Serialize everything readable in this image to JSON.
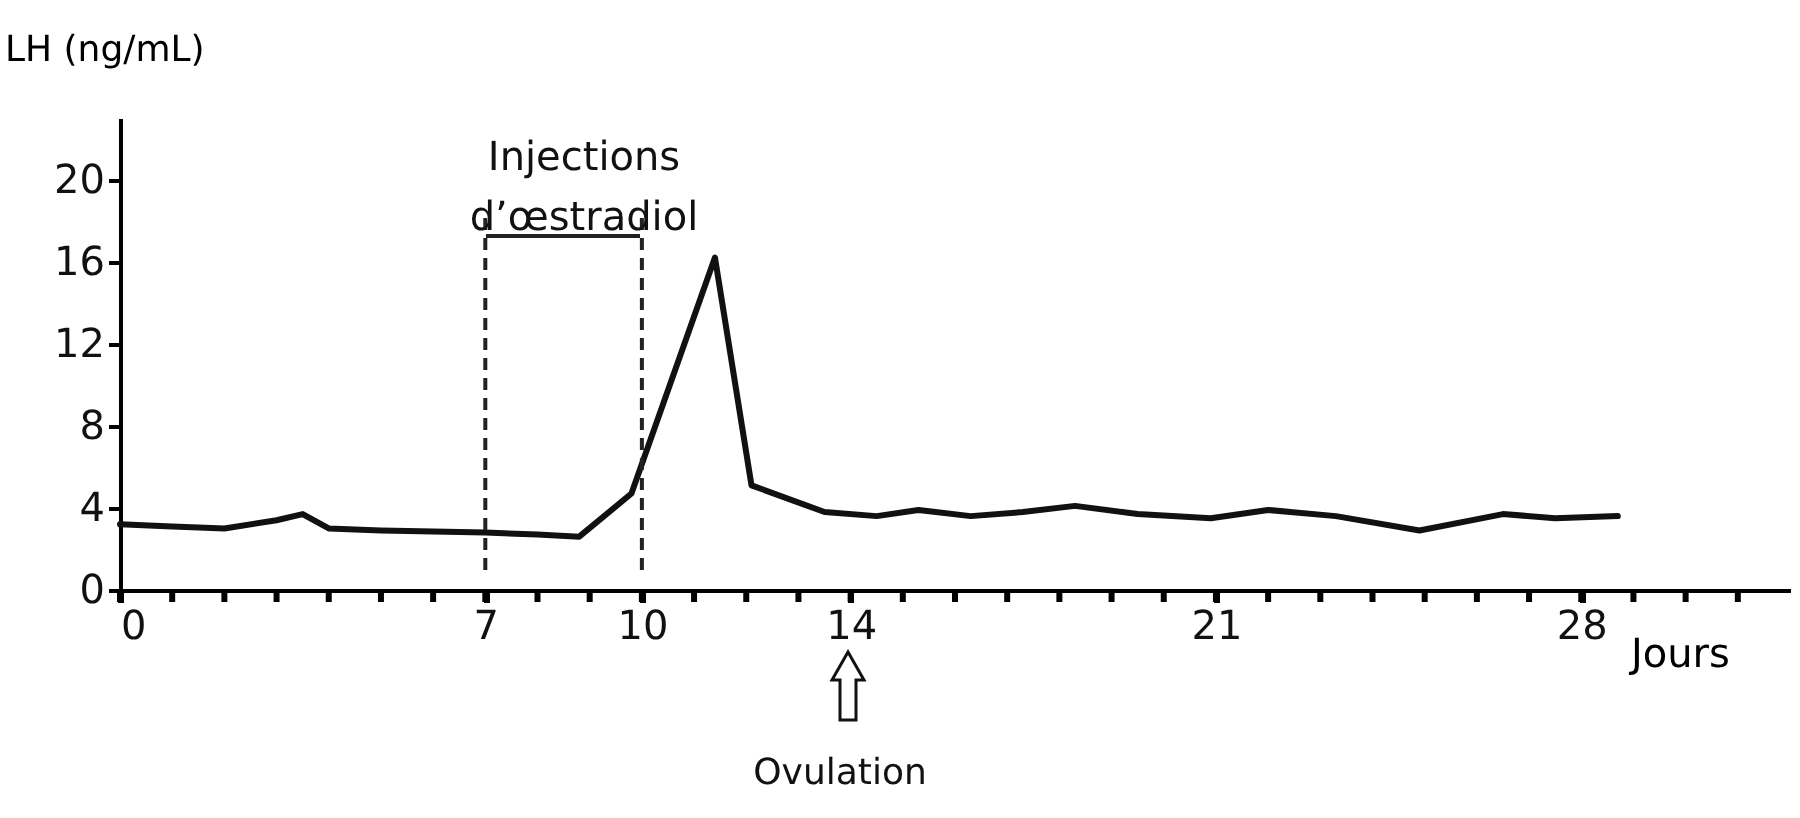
{
  "chart_data": {
    "type": "line",
    "xlabel": "Jours",
    "ylabel": "LH (ng/mL)",
    "x": [
      0,
      1,
      2,
      3,
      3.5,
      4,
      5,
      7,
      8,
      8.8,
      9.8,
      11.4,
      12.1,
      13.5,
      14.5,
      15.3,
      16.3,
      17.3,
      18.3,
      19.5,
      20.9,
      22,
      23.3,
      24.9,
      26.5,
      27.5,
      28.7
    ],
    "series": [
      {
        "color": "#111111",
        "values": [
          3.2,
          3.1,
          3.0,
          3.4,
          3.7,
          3.0,
          2.9,
          2.8,
          2.7,
          2.6,
          4.7,
          16.2,
          5.1,
          3.8,
          3.6,
          3.9,
          3.6,
          3.8,
          4.1,
          3.7,
          3.5,
          3.9,
          3.6,
          2.9,
          3.7,
          3.5,
          3.6
        ]
      }
    ],
    "xlim": [
      0,
      32
    ],
    "ylim": [
      0,
      23
    ],
    "xticks": [
      0,
      {
        "value": 1,
        "label": null
      },
      {
        "value": 2,
        "label": null
      },
      {
        "value": 3,
        "label": null
      },
      {
        "value": 4,
        "label": null
      },
      {
        "value": 5,
        "label": null
      },
      {
        "value": 6,
        "label": null
      },
      7,
      {
        "value": 8,
        "label": null
      },
      {
        "value": 9,
        "label": null
      },
      10,
      {
        "value": 11,
        "label": null
      },
      {
        "value": 12,
        "label": null
      },
      {
        "value": 13,
        "label": null
      },
      14,
      {
        "value": 15,
        "label": null
      },
      {
        "value": 16,
        "label": null
      },
      {
        "value": 17,
        "label": null
      },
      {
        "value": 18,
        "label": null
      },
      {
        "value": 19,
        "label": null
      },
      {
        "value": 20,
        "label": null
      },
      21,
      {
        "value": 22,
        "label": null
      },
      {
        "value": 23,
        "label": null
      },
      {
        "value": 24,
        "label": null
      },
      {
        "value": 25,
        "label": null
      },
      {
        "value": 26,
        "label": null
      },
      {
        "value": 27,
        "label": null
      },
      28,
      {
        "value": 29,
        "label": null
      },
      {
        "value": 30,
        "label": null
      },
      {
        "value": 31,
        "label": null
      }
    ],
    "yticks": [
      0,
      4,
      8,
      12,
      16,
      20
    ],
    "ref_lines": [
      {
        "axis": "x",
        "value": 7,
        "line_style": "dashed"
      },
      {
        "axis": "x",
        "value": 10,
        "line_style": "dashed"
      }
    ],
    "annotations": [
      "Injections d’œstradiol",
      "Ovulation"
    ],
    "grid": false,
    "marker": "none",
    "line_style": "solid"
  }
}
